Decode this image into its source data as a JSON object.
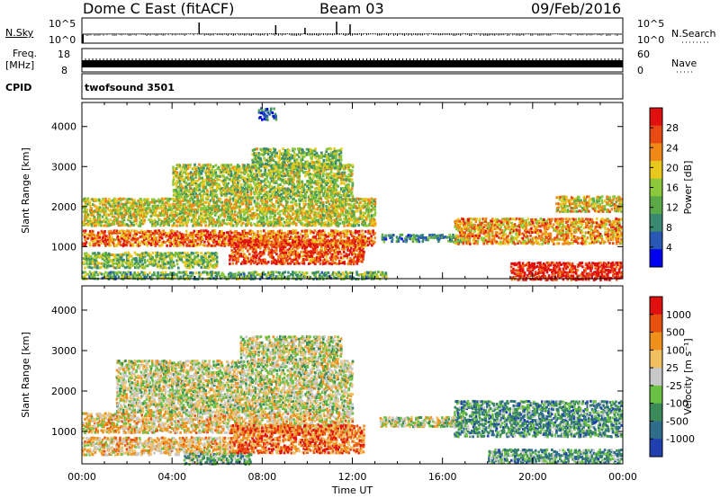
{
  "header": {
    "station": "Dome C East (fitACF)",
    "beam": "Beam 03",
    "date": "09/Feb/2016"
  },
  "panels": {
    "nsky_label": "N.Sky",
    "nsky_ticks": [
      "10^5",
      "10^0"
    ],
    "nsky_right_ticks": [
      "10^5",
      "10^0"
    ],
    "nsearch_label": "N.Search",
    "freq_label": "Freq.",
    "freq_unit": "[MHz]",
    "freq_ticks": [
      "18",
      "8"
    ],
    "nave_ticks": [
      "60",
      "0"
    ],
    "nave_label": "Nave",
    "cpid_label": "CPID",
    "cpid_value": "twofsound 3501"
  },
  "chart_data": [
    {
      "type": "heatmap",
      "name": "power",
      "ylabel": "Slant Range [km]",
      "yticks": [
        1000,
        2000,
        3000,
        4000
      ],
      "ylim": [
        200,
        4600
      ],
      "xlim": [
        0,
        24
      ],
      "colorbar_label": "Power [dB]",
      "colorbar_ticks": [
        "28",
        "24",
        "20",
        "16",
        "12",
        "8",
        "4"
      ],
      "colors": [
        "#0000ee",
        "#2857b4",
        "#3a8a72",
        "#5aa848",
        "#8cc83c",
        "#e8c81c",
        "#f08818",
        "#e84a14",
        "#e01010"
      ],
      "regions": [
        {
          "t0": 0.0,
          "t1": 13.0,
          "r0": 1050,
          "r1": 1450,
          "level": 0.78
        },
        {
          "t0": 0.0,
          "t1": 13.0,
          "r0": 1550,
          "r1": 2250,
          "level": 0.55
        },
        {
          "t0": 4.0,
          "t1": 12.0,
          "r0": 2250,
          "r1": 3100,
          "level": 0.5
        },
        {
          "t0": 7.5,
          "t1": 11.5,
          "r0": 3000,
          "r1": 3500,
          "level": 0.45
        },
        {
          "t0": 6.5,
          "t1": 12.5,
          "r0": 600,
          "r1": 1200,
          "level": 0.85
        },
        {
          "t0": 0.0,
          "t1": 6.0,
          "r0": 500,
          "r1": 900,
          "level": 0.45
        },
        {
          "t0": 0.0,
          "t1": 13.5,
          "r0": 220,
          "r1": 420,
          "level": 0.4
        },
        {
          "t0": 13.2,
          "t1": 17.2,
          "r0": 1150,
          "r1": 1350,
          "level": 0.3
        },
        {
          "t0": 16.5,
          "t1": 24.0,
          "r0": 1100,
          "r1": 1750,
          "level": 0.7
        },
        {
          "t0": 19.0,
          "t1": 24.0,
          "r0": 200,
          "r1": 650,
          "level": 0.95
        },
        {
          "t0": 21.0,
          "t1": 24.0,
          "r0": 1900,
          "r1": 2300,
          "level": 0.6
        },
        {
          "t0": 7.8,
          "t1": 8.6,
          "r0": 4200,
          "r1": 4500,
          "level": 0.2
        }
      ]
    },
    {
      "type": "heatmap",
      "name": "velocity",
      "ylabel": "Slant Range [km]",
      "yticks": [
        1000,
        2000,
        3000,
        4000
      ],
      "ylim": [
        200,
        4600
      ],
      "xlim": [
        0,
        24
      ],
      "colorbar_label": "Velocity [m s⁻¹]",
      "colorbar_ticks": [
        "1000",
        "500",
        "100",
        "25",
        "-25",
        "-100",
        "-500",
        "-1000"
      ],
      "colors": [
        "#2040b0",
        "#2e6e8c",
        "#3a8a5a",
        "#6ac040",
        "#c8c8c8",
        "#f0c060",
        "#f0901c",
        "#e85010",
        "#e01010"
      ],
      "regions": [
        {
          "t0": 0.0,
          "t1": 12.0,
          "r0": 1000,
          "r1": 1500,
          "level": 0.6
        },
        {
          "t0": 1.5,
          "t1": 12.0,
          "r0": 1500,
          "r1": 2800,
          "level": 0.5
        },
        {
          "t0": 7.0,
          "t1": 11.5,
          "r0": 2800,
          "r1": 3400,
          "level": 0.5
        },
        {
          "t0": 6.5,
          "t1": 12.5,
          "r0": 500,
          "r1": 1200,
          "level": 0.78
        },
        {
          "t0": 0.0,
          "t1": 6.5,
          "r0": 450,
          "r1": 900,
          "level": 0.62
        },
        {
          "t0": 13.2,
          "t1": 17.0,
          "r0": 1150,
          "r1": 1400,
          "level": 0.5
        },
        {
          "t0": 16.5,
          "t1": 24.0,
          "r0": 900,
          "r1": 1800,
          "level": 0.28
        },
        {
          "t0": 18.0,
          "t1": 24.0,
          "r0": 250,
          "r1": 600,
          "level": 0.3
        },
        {
          "t0": 4.5,
          "t1": 7.5,
          "r0": 220,
          "r1": 500,
          "level": 0.35
        }
      ]
    }
  ],
  "time_axis": {
    "label": "Time UT",
    "ticks": [
      "00:00",
      "04:00",
      "08:00",
      "12:00",
      "16:00",
      "20:00",
      "00:00"
    ]
  }
}
